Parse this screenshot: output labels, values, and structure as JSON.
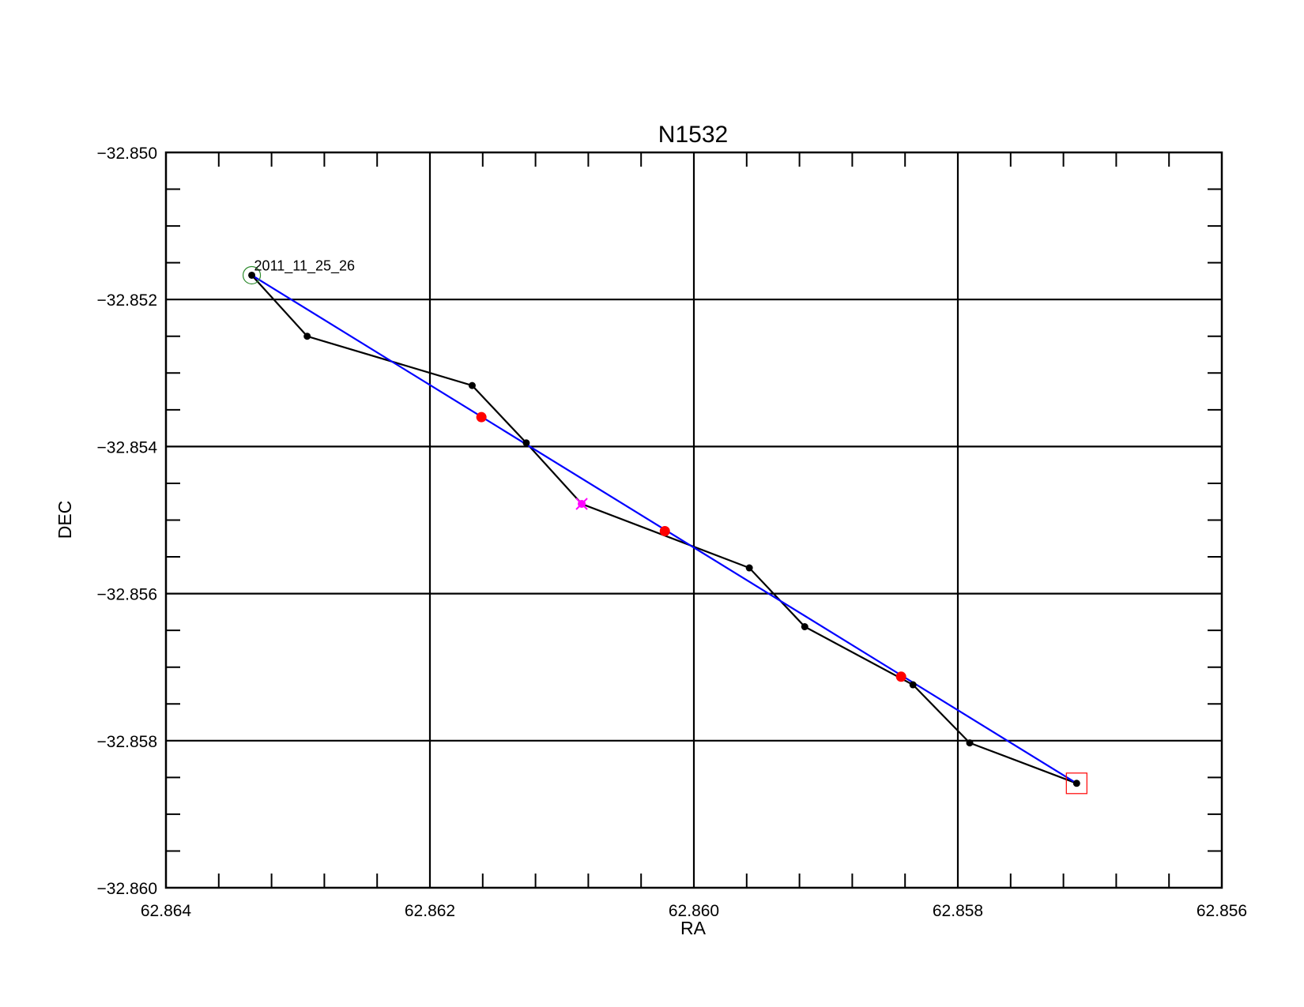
{
  "chart_data": {
    "type": "line",
    "title": "N1532",
    "xlabel": "RA",
    "ylabel": "DEC",
    "xlim": [
      62.864,
      62.856
    ],
    "ylim": [
      -32.86,
      -32.85
    ],
    "x_ticks": [
      62.864,
      62.862,
      62.86,
      62.858,
      62.856
    ],
    "x_tick_labels": [
      "62.864",
      "62.862",
      "62.860",
      "62.858",
      "62.856"
    ],
    "y_ticks": [
      -32.85,
      -32.852,
      -32.854,
      -32.856,
      -32.858,
      -32.86
    ],
    "y_tick_labels": [
      "−32.850",
      "−32.852",
      "−32.854",
      "−32.856",
      "−32.858",
      "−32.860"
    ],
    "grid": true,
    "series": [
      {
        "role": "track",
        "color": "#000000",
        "x": [
          62.86335,
          62.86293,
          62.86168,
          62.86127,
          62.86085,
          62.85958,
          62.85916,
          62.85834,
          62.85791,
          62.8571
        ],
        "y": [
          -32.85167,
          -32.8525,
          -32.85317,
          -32.85395,
          -32.85478,
          -32.85565,
          -32.85645,
          -32.85724,
          -32.85803,
          -32.85858
        ]
      },
      {
        "role": "fit",
        "color": "#0000ff",
        "x": [
          62.86335,
          62.8571
        ],
        "y": [
          -32.85167,
          -32.85858
        ]
      },
      {
        "role": "fit-points",
        "color": "#ff0000",
        "x": [
          62.86161,
          62.86022,
          62.85843
        ],
        "y": [
          -32.8536,
          -32.85515,
          -32.85713
        ]
      }
    ],
    "highlight_point": {
      "x": 62.86085,
      "y": -32.85478,
      "color": "#ff00ff"
    },
    "start_marker": {
      "x": 62.86335,
      "y": -32.85167,
      "color": "#2e8b2e",
      "shape": "circle"
    },
    "end_marker": {
      "x": 62.8571,
      "y": -32.85858,
      "color": "#ff0000",
      "shape": "square"
    },
    "annotations": [
      {
        "text": "2011_11_25_26",
        "x": 62.86335,
        "y": -32.85167
      }
    ]
  }
}
